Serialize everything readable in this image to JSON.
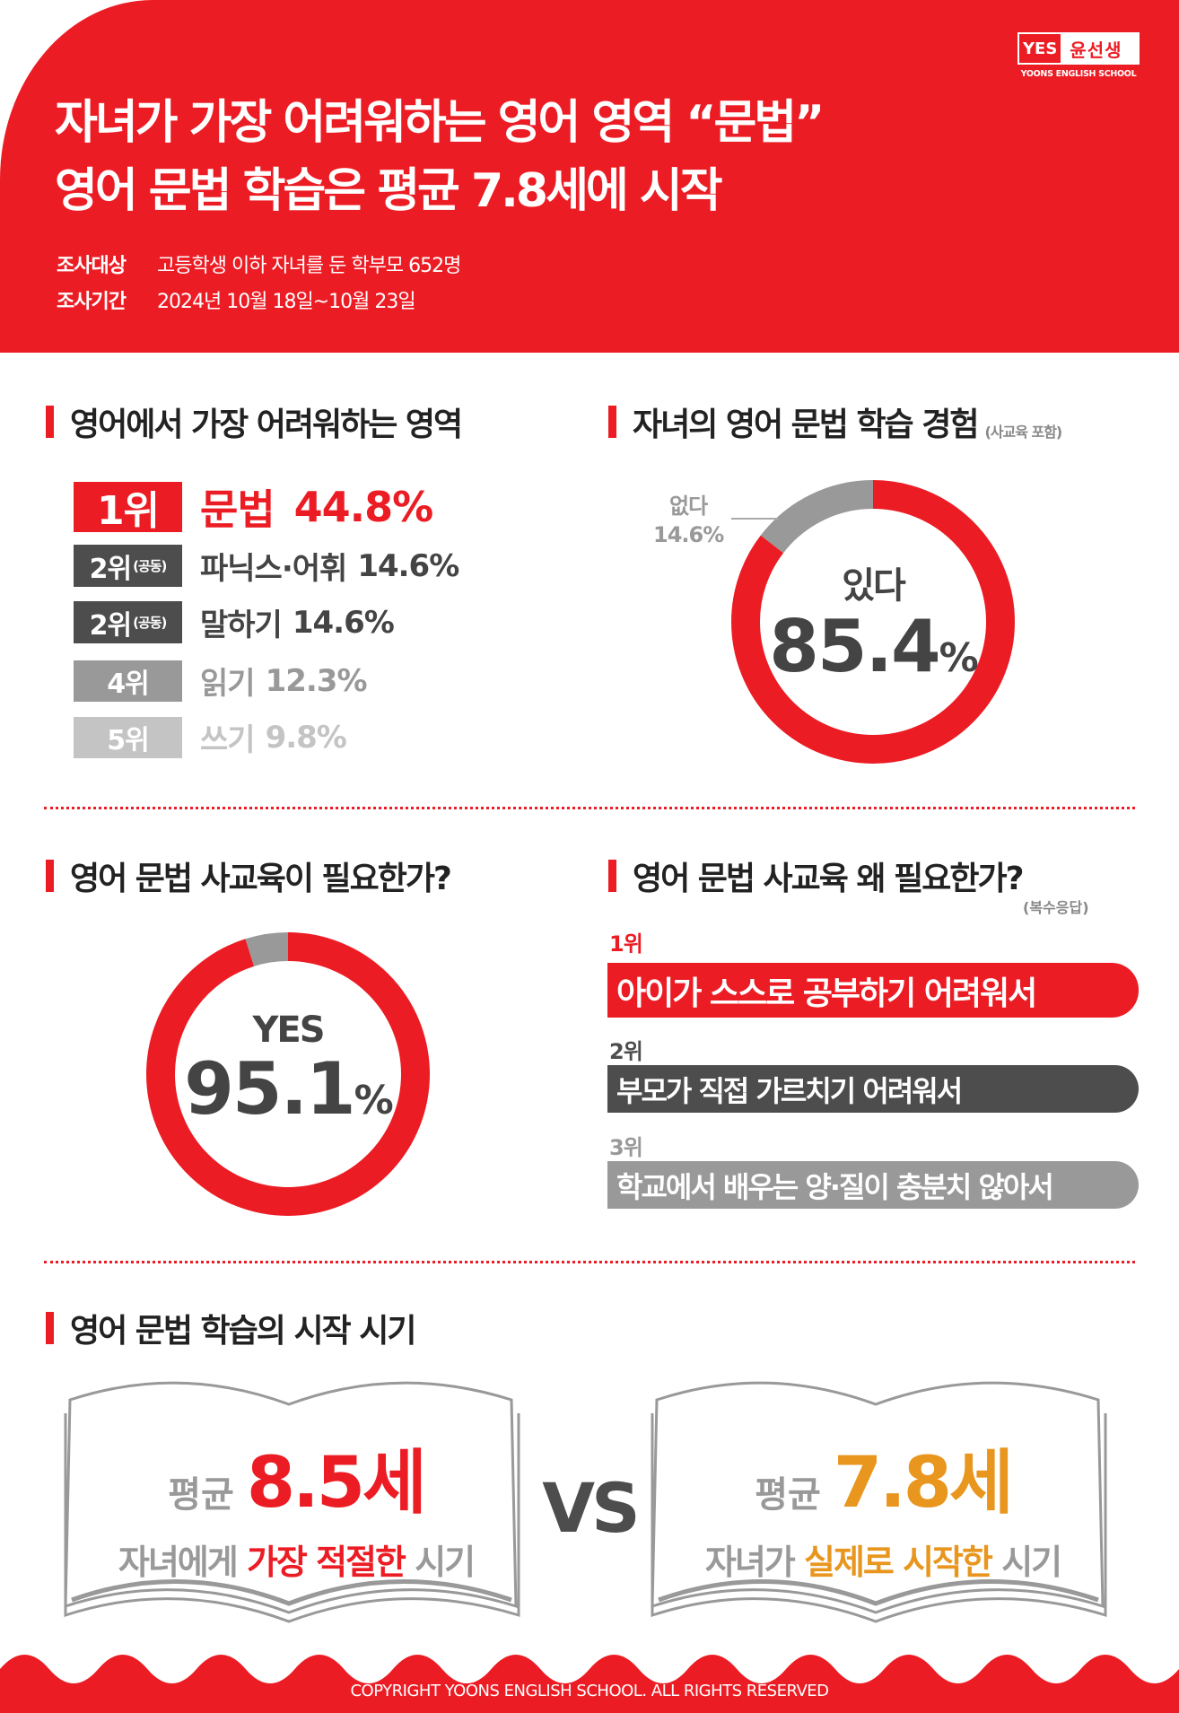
{
  "colors": {
    "brand_red": "#ec1c24",
    "dark_gray": "#4d4d4d",
    "mid_gray": "#999999",
    "light_gray": "#c4c4c4",
    "orange": "#e8961e"
  },
  "header": {
    "logo": {
      "mark": "YES",
      "name": "윤선생",
      "sub": "YOONS ENGLISH SCHOOL"
    },
    "title_line1": "자녀가 가장 어려워하는 영어 영역 “문법”",
    "title_line2": "영어 문법 학습은 평균 7.8세에 시작",
    "survey_target_label": "조사대상",
    "survey_target": "고등학생 이하 자녀를 둔 학부모 652명",
    "survey_period_label": "조사기간",
    "survey_period": "2024년 10월 18일~10월 23일"
  },
  "section_difficult": {
    "title": "영어에서 가장 어려워하는 영역",
    "items": [
      {
        "rank": "1위",
        "tie": "",
        "label": "문법",
        "value": "44.8%"
      },
      {
        "rank": "2위",
        "tie": "(공동)",
        "label": "파닉스·어휘",
        "value": "14.6%"
      },
      {
        "rank": "2위",
        "tie": "(공동)",
        "label": "말하기",
        "value": "14.6%"
      },
      {
        "rank": "4위",
        "tie": "",
        "label": "읽기",
        "value": "12.3%"
      },
      {
        "rank": "5위",
        "tie": "",
        "label": "쓰기",
        "value": "9.8%"
      }
    ]
  },
  "section_experience": {
    "title": "자녀의 영어 문법 학습 경험",
    "note": "(사교육 포함)",
    "yes_label": "있다",
    "yes_value": "85.4",
    "pct": "%",
    "no_label": "없다",
    "no_value": "14.6%",
    "chart_data": {
      "type": "pie",
      "categories": [
        "있다",
        "없다"
      ],
      "values": [
        85.4,
        14.6
      ]
    }
  },
  "section_need": {
    "title": "영어 문법 사교육이 필요한가?",
    "yes_label": "YES",
    "yes_value": "95.1",
    "pct": "%",
    "chart_data": {
      "type": "pie",
      "categories": [
        "YES",
        "other"
      ],
      "values": [
        95.1,
        4.9
      ]
    }
  },
  "section_why": {
    "title": "영어 문법 사교육 왜 필요한가?",
    "note": "(복수응답)",
    "reasons": [
      {
        "rank": "1위",
        "text": "아이가 스스로 공부하기 어려워서"
      },
      {
        "rank": "2위",
        "text": "부모가 직접 가르치기 어려워서"
      },
      {
        "rank": "3위",
        "text": "학교에서 배우는 양·질이 충분치 않아서"
      }
    ]
  },
  "section_start": {
    "title": "영어 문법 학습의 시작 시기",
    "left": {
      "avg_label": "평균",
      "value": "8.5세",
      "desc_pre": "자녀에게 ",
      "desc_hl": "가장 적절한",
      "desc_post": " 시기"
    },
    "vs": "VS",
    "right": {
      "avg_label": "평균",
      "value": "7.8세",
      "desc_pre": "자녀가 ",
      "desc_hl": "실제로 시작한",
      "desc_post": " 시기"
    }
  },
  "footer": {
    "copyright": "COPYRIGHT YOONS ENGLISH SCHOOL. ALL RIGHTS RESERVED"
  }
}
